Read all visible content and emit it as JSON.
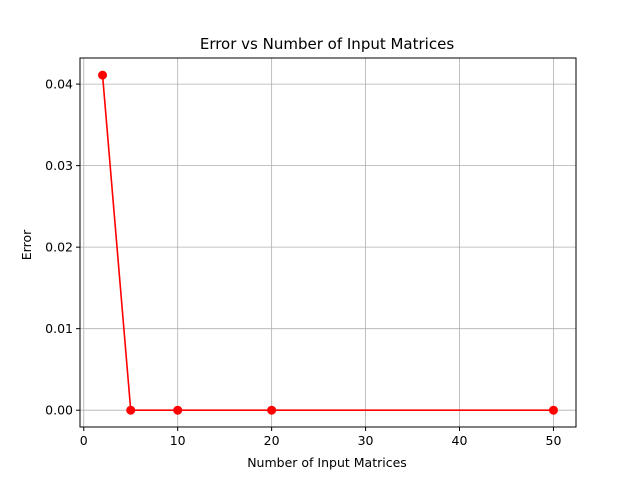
{
  "chart_data": {
    "type": "line",
    "title": "Error vs Number of Input Matrices",
    "xlabel": "Number of Input Matrices",
    "ylabel": "Error",
    "xlim": [
      -0.4,
      52.4
    ],
    "ylim": [
      -0.00206,
      0.0432
    ],
    "xticks": [
      0,
      10,
      20,
      30,
      40,
      50
    ],
    "yticks": [
      0.0,
      0.01,
      0.02,
      0.03,
      0.04
    ],
    "xtick_labels": [
      "0",
      "10",
      "20",
      "30",
      "40",
      "50"
    ],
    "ytick_labels": [
      "0.00",
      "0.01",
      "0.02",
      "0.03",
      "0.04"
    ],
    "grid": true,
    "series": [
      {
        "x": [
          2,
          5,
          10,
          20,
          50
        ],
        "y": [
          0.0411,
          0.0,
          0.0,
          0.0,
          0.0
        ],
        "color": "#ff0000",
        "marker": "circle"
      }
    ]
  }
}
